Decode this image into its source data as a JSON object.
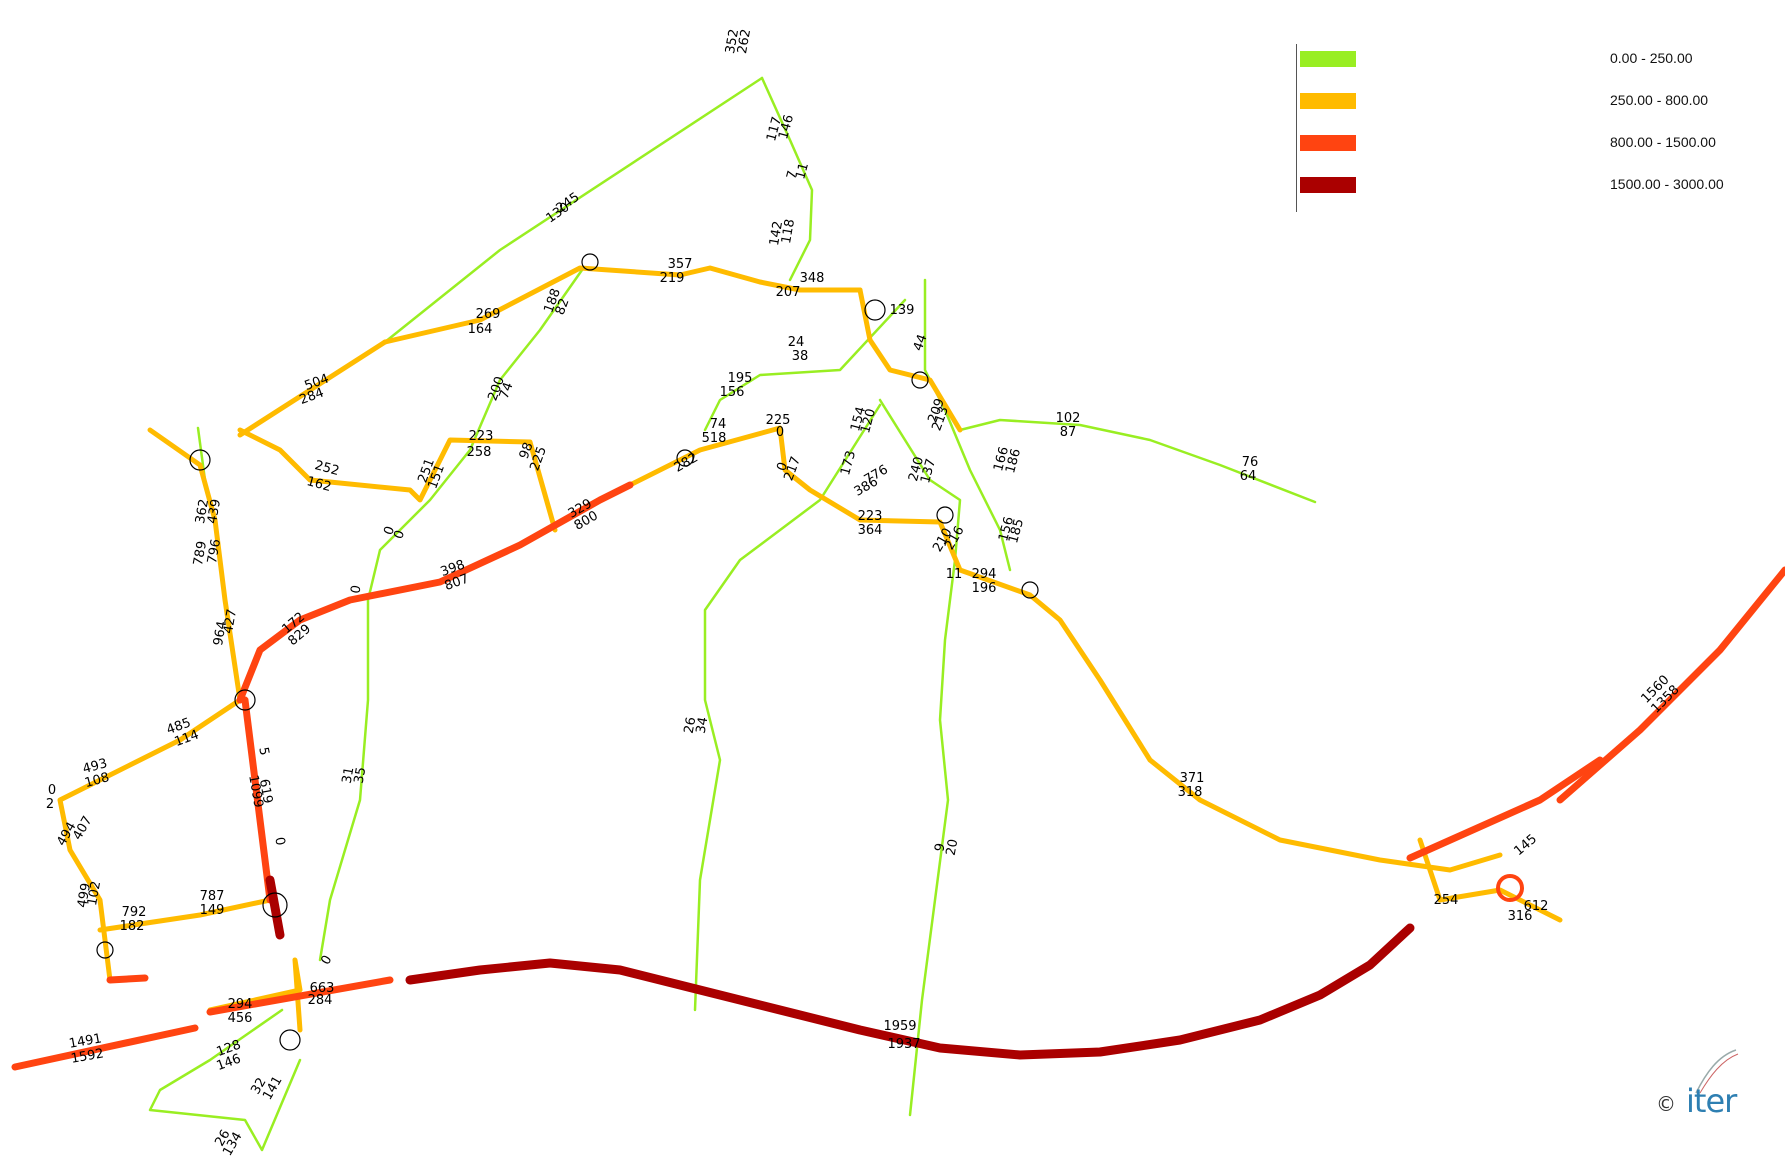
{
  "legend": {
    "items": [
      {
        "range": "0.00 - 250.00",
        "color": "#99ee22"
      },
      {
        "range": "250.00 - 800.00",
        "color": "#ffbb00"
      },
      {
        "range": "800.00 - 1500.00",
        "color": "#ff4411"
      },
      {
        "range": "1500.00 - 3000.00",
        "color": "#aa0000"
      }
    ]
  },
  "copyright": {
    "symbol": "©",
    "brand": "iter"
  },
  "flow_labels": [
    "262",
    "352",
    "146",
    "117",
    "11",
    "7",
    "118",
    "142",
    "245",
    "130",
    "357",
    "219",
    "348",
    "207",
    "269",
    "164",
    "188",
    "82",
    "504",
    "284",
    "195",
    "156",
    "200",
    "74",
    "223",
    "258",
    "98",
    "225",
    "252",
    "162",
    "251",
    "151",
    "0",
    "0",
    "0",
    "776",
    "386",
    "282",
    "74",
    "518",
    "225",
    "0",
    "0",
    "217",
    "223",
    "364",
    "240",
    "137",
    "173",
    "154",
    "120",
    "172",
    "829",
    "398",
    "807",
    "329",
    "800",
    "362",
    "439",
    "789",
    "796",
    "964",
    "427",
    "485",
    "114",
    "493",
    "108",
    "0",
    "2",
    "407",
    "494",
    "5",
    "619",
    "1099",
    "0",
    "787",
    "149",
    "792",
    "182",
    "102",
    "499",
    "294",
    "456",
    "128",
    "146",
    "663",
    "284",
    "0",
    "32",
    "141",
    "26",
    "134",
    "1491",
    "1592",
    "1959",
    "1937",
    "102",
    "87",
    "76",
    "64",
    "166",
    "186",
    "156",
    "185",
    "216",
    "210",
    "294",
    "196",
    "11",
    "9",
    "20",
    "26",
    "34",
    "31",
    "35",
    "371",
    "318",
    "1560",
    "1358",
    "145",
    "254",
    "612",
    "316",
    "24",
    "38",
    "139",
    "44",
    "209",
    "213"
  ]
}
